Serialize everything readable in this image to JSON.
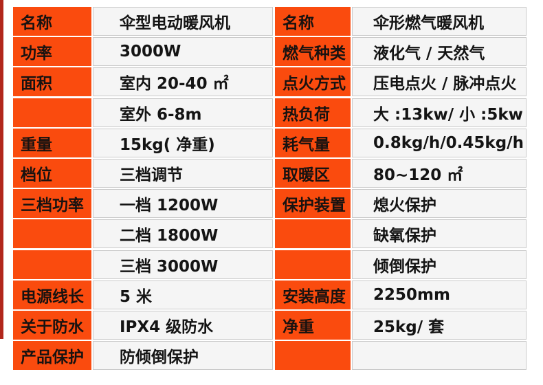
{
  "colors": {
    "label_bg": "#fa4b0e",
    "value_bg": "#f5f5f5",
    "value_border": "#c9c9c9",
    "accent_strip": "#b2271c",
    "text": "#141414"
  },
  "left_table": {
    "rows": [
      {
        "label": "名称",
        "value": "伞型电动暖风机"
      },
      {
        "label": "功率",
        "value": "3000W"
      },
      {
        "label": "面积",
        "value": "室内 20-40 ㎡"
      },
      {
        "label": "",
        "value": "室外 6-8m"
      },
      {
        "label": "重量",
        "value": "15kg( 净重)"
      },
      {
        "label": "档位",
        "value": "三档调节"
      },
      {
        "label": "三档功率",
        "value": "一档 1200W"
      },
      {
        "label": "",
        "value": "二档 1800W"
      },
      {
        "label": "",
        "value": "三档 3000W"
      },
      {
        "label": "电源线长",
        "value": "5 米"
      },
      {
        "label": "关于防水",
        "value": "IPX4 级防水"
      },
      {
        "label": "产品保护",
        "value": "防倾倒保护"
      }
    ]
  },
  "right_table": {
    "rows": [
      {
        "label": "名称",
        "value": "伞形燃气暖风机"
      },
      {
        "label": "燃气种类",
        "value": "液化气 / 天然气"
      },
      {
        "label": "点火方式",
        "value": "压电点火 / 脉冲点火"
      },
      {
        "label": "热负荷",
        "value": "大 :13kw/ 小 :5kw"
      },
      {
        "label": "耗气量",
        "value": "0.8kg/h/0.45kg/h"
      },
      {
        "label": "取暖区",
        "value": "80~120 ㎡"
      },
      {
        "label": "保护装置",
        "value": "熄火保护"
      },
      {
        "label": "",
        "value": "缺氧保护"
      },
      {
        "label": "",
        "value": "倾倒保护"
      },
      {
        "label": "安装高度",
        "value": "2250mm"
      },
      {
        "label": "净重",
        "value": "25kg/ 套"
      },
      {
        "label": "",
        "value": ""
      }
    ]
  }
}
